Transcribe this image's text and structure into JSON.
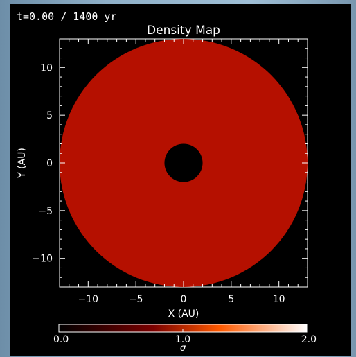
{
  "time_readout": "t=0.00 / 1400 yr",
  "colors": {
    "background": "#000000",
    "axis": "#ffffff",
    "disk_fill": "#b51000"
  },
  "chart_data": {
    "type": "heatmap",
    "title": "Density Map",
    "xlabel": "X (AU)",
    "ylabel": "Y (AU)",
    "xlim": [
      -13,
      13
    ],
    "ylim": [
      -13,
      13
    ],
    "xticks": [
      -10,
      -5,
      0,
      5,
      10
    ],
    "yticks": [
      -10,
      -5,
      0,
      5,
      10
    ],
    "x_tick_labels": [
      "−10",
      "−5",
      "0",
      "5",
      "10"
    ],
    "y_tick_labels": [
      "−10",
      "−5",
      "0",
      "5",
      "10"
    ],
    "disk": {
      "center": [
        0,
        0
      ],
      "outer_radius_au": 13,
      "inner_radius_au": 2,
      "density": 1.0
    },
    "colorbar": {
      "label": "σ",
      "min": 0.0,
      "max": 2.0,
      "tick_values": [
        0.0,
        1.0,
        2.0
      ],
      "tick_labels": [
        "0.0",
        "1.0",
        "2.0"
      ],
      "stops": [
        "#000000",
        "#7a0000",
        "#ff5a00",
        "#ffffff"
      ]
    }
  }
}
